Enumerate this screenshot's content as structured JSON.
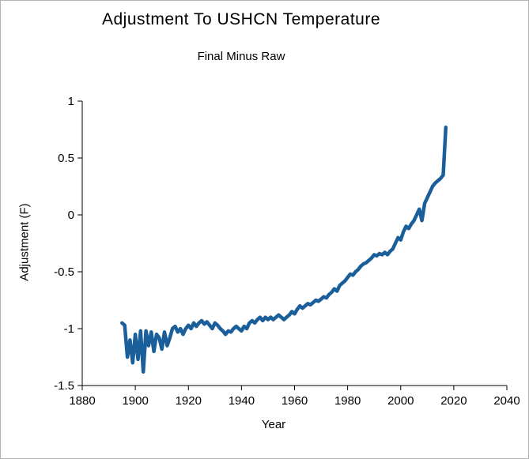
{
  "page": {
    "background": "#ffffff",
    "border_color": "#b3b3b3"
  },
  "chart_data": {
    "type": "line",
    "title": "Adjustment To USHCN Temperature",
    "subtitle": "Final Minus Raw",
    "xlabel": "Year",
    "ylabel": "Adjustment (F)",
    "xlim": [
      1880,
      2040
    ],
    "ylim": [
      -1.5,
      1
    ],
    "xtick_step": 20,
    "ytick_step": 0.5,
    "grid": false,
    "legend": "none",
    "axis_color": "#000000",
    "line_color": "#1a5e9a",
    "line_width": 4.5,
    "x": [
      1895,
      1896,
      1897,
      1898,
      1899,
      1900,
      1901,
      1902,
      1903,
      1904,
      1905,
      1906,
      1907,
      1908,
      1909,
      1910,
      1911,
      1912,
      1913,
      1914,
      1915,
      1916,
      1917,
      1918,
      1919,
      1920,
      1921,
      1922,
      1923,
      1924,
      1925,
      1926,
      1927,
      1928,
      1929,
      1930,
      1931,
      1932,
      1933,
      1934,
      1935,
      1936,
      1937,
      1938,
      1939,
      1940,
      1941,
      1942,
      1943,
      1944,
      1945,
      1946,
      1947,
      1948,
      1949,
      1950,
      1951,
      1952,
      1953,
      1954,
      1955,
      1956,
      1957,
      1958,
      1959,
      1960,
      1961,
      1962,
      1963,
      1964,
      1965,
      1966,
      1967,
      1968,
      1969,
      1970,
      1971,
      1972,
      1973,
      1974,
      1975,
      1976,
      1977,
      1978,
      1979,
      1980,
      1981,
      1982,
      1983,
      1984,
      1985,
      1986,
      1987,
      1988,
      1989,
      1990,
      1991,
      1992,
      1993,
      1994,
      1995,
      1996,
      1997,
      1998,
      1999,
      2000,
      2001,
      2002,
      2003,
      2004,
      2005,
      2006,
      2007,
      2008,
      2009,
      2010,
      2011,
      2012,
      2013,
      2014,
      2015,
      2016,
      2017
    ],
    "y": [
      -0.95,
      -0.97,
      -1.25,
      -1.1,
      -1.3,
      -1.05,
      -1.27,
      -1.02,
      -1.38,
      -1.02,
      -1.15,
      -1.03,
      -1.2,
      -1.05,
      -1.08,
      -1.18,
      -1.03,
      -1.15,
      -1.08,
      -1.0,
      -0.98,
      -1.03,
      -1.0,
      -1.05,
      -1.0,
      -0.97,
      -1.0,
      -0.95,
      -0.98,
      -0.95,
      -0.93,
      -0.96,
      -0.94,
      -0.97,
      -1.0,
      -0.95,
      -0.97,
      -1.0,
      -1.02,
      -1.05,
      -1.02,
      -1.03,
      -1.0,
      -0.98,
      -1.0,
      -1.02,
      -0.98,
      -1.0,
      -0.95,
      -0.93,
      -0.95,
      -0.92,
      -0.9,
      -0.93,
      -0.9,
      -0.92,
      -0.9,
      -0.92,
      -0.9,
      -0.88,
      -0.9,
      -0.92,
      -0.9,
      -0.88,
      -0.85,
      -0.87,
      -0.83,
      -0.8,
      -0.82,
      -0.8,
      -0.78,
      -0.79,
      -0.77,
      -0.75,
      -0.76,
      -0.74,
      -0.72,
      -0.73,
      -0.7,
      -0.68,
      -0.65,
      -0.67,
      -0.62,
      -0.6,
      -0.58,
      -0.55,
      -0.52,
      -0.53,
      -0.5,
      -0.48,
      -0.45,
      -0.43,
      -0.42,
      -0.4,
      -0.38,
      -0.35,
      -0.36,
      -0.34,
      -0.35,
      -0.33,
      -0.35,
      -0.32,
      -0.3,
      -0.25,
      -0.2,
      -0.22,
      -0.15,
      -0.1,
      -0.12,
      -0.08,
      -0.05,
      0.0,
      0.05,
      -0.05,
      0.1,
      0.15,
      0.2,
      0.25,
      0.28,
      0.3,
      0.32,
      0.35,
      0.77
    ]
  }
}
